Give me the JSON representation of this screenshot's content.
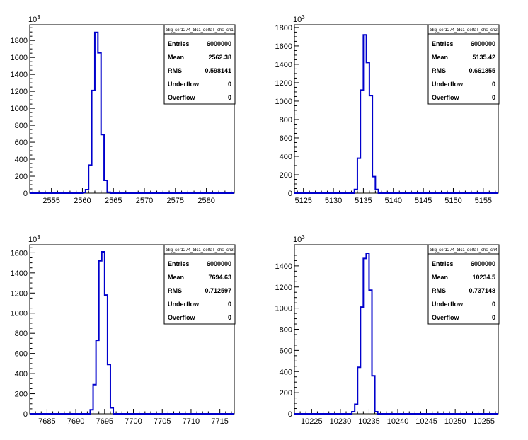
{
  "chart_data": [
    {
      "type": "histogram",
      "name": "tdig_ser1274_tdc1_deltaT_ch0_ch1",
      "x_ticks": [
        2555,
        2560,
        2565,
        2570,
        2575,
        2580
      ],
      "xlim": [
        2551.5,
        2584.5
      ],
      "y_ticks": [
        0,
        200,
        400,
        600,
        800,
        1000,
        1200,
        1400,
        1600,
        1800
      ],
      "ylim": [
        0,
        1985
      ],
      "y_exponent": "10",
      "y_exponent_power": "3",
      "bins": [
        {
          "x": 2558.5,
          "y": 0
        },
        {
          "x": 2559.5,
          "y": 0
        },
        {
          "x": 2560.0,
          "y": 8
        },
        {
          "x": 2560.5,
          "y": 42
        },
        {
          "x": 2561.0,
          "y": 330
        },
        {
          "x": 2561.5,
          "y": 1210
        },
        {
          "x": 2562.0,
          "y": 1895
        },
        {
          "x": 2562.5,
          "y": 1655
        },
        {
          "x": 2563.0,
          "y": 690
        },
        {
          "x": 2563.5,
          "y": 150
        },
        {
          "x": 2564.0,
          "y": 10
        },
        {
          "x": 2564.5,
          "y": 0
        }
      ],
      "bin_width": 0.5,
      "color": "#0000cc",
      "stats": {
        "title": "tdig_ser1274_tdc1_deltaT_ch0_ch1",
        "rows": [
          {
            "label": "Entries",
            "value": "6000000"
          },
          {
            "label": "Mean",
            "value": "2562.38"
          },
          {
            "label": "RMS",
            "value": "0.598141"
          },
          {
            "label": "Underflow",
            "value": "0"
          },
          {
            "label": "Overflow",
            "value": "0"
          }
        ]
      }
    },
    {
      "type": "histogram",
      "name": "tdig_ser1274_tdc1_deltaT_ch0_ch2",
      "x_ticks": [
        5125,
        5130,
        5135,
        5140,
        5145,
        5150,
        5155
      ],
      "xlim": [
        5123.5,
        5157.5
      ],
      "y_ticks": [
        0,
        200,
        400,
        600,
        800,
        1000,
        1200,
        1400,
        1600,
        1800
      ],
      "ylim": [
        0,
        1830
      ],
      "y_exponent": "10",
      "y_exponent_power": "3",
      "bins": [
        {
          "x": 5132.0,
          "y": 0
        },
        {
          "x": 5133.0,
          "y": 0
        },
        {
          "x": 5133.5,
          "y": 40
        },
        {
          "x": 5134.0,
          "y": 380
        },
        {
          "x": 5134.5,
          "y": 1120
        },
        {
          "x": 5135.0,
          "y": 1720
        },
        {
          "x": 5135.5,
          "y": 1420
        },
        {
          "x": 5136.0,
          "y": 1060
        },
        {
          "x": 5136.5,
          "y": 180
        },
        {
          "x": 5137.0,
          "y": 40
        },
        {
          "x": 5137.5,
          "y": 0
        }
      ],
      "bin_width": 0.5,
      "color": "#0000cc",
      "stats": {
        "title": "tdig_ser1274_tdc1_deltaT_ch0_ch2",
        "rows": [
          {
            "label": "Entries",
            "value": "6000000"
          },
          {
            "label": "Mean",
            "value": "5135.42"
          },
          {
            "label": "RMS",
            "value": "0.661855"
          },
          {
            "label": "Underflow",
            "value": "0"
          },
          {
            "label": "Overflow",
            "value": "0"
          }
        ]
      }
    },
    {
      "type": "histogram",
      "name": "tdig_ser1274_tdc1_deltaT_ch0_ch3",
      "x_ticks": [
        7685,
        7690,
        7695,
        7700,
        7705,
        7710,
        7715
      ],
      "xlim": [
        7682.0,
        7717.5
      ],
      "y_ticks": [
        0,
        200,
        400,
        600,
        800,
        1000,
        1200,
        1400,
        1600
      ],
      "ylim": [
        0,
        1680
      ],
      "y_exponent": "10",
      "y_exponent_power": "3",
      "bins": [
        {
          "x": 7692.0,
          "y": 0
        },
        {
          "x": 7692.5,
          "y": 40
        },
        {
          "x": 7693.0,
          "y": 290
        },
        {
          "x": 7693.5,
          "y": 730
        },
        {
          "x": 7694.0,
          "y": 1520
        },
        {
          "x": 7694.5,
          "y": 1610
        },
        {
          "x": 7695.0,
          "y": 1180
        },
        {
          "x": 7695.5,
          "y": 490
        },
        {
          "x": 7696.0,
          "y": 60
        },
        {
          "x": 7696.5,
          "y": 0
        }
      ],
      "bin_width": 0.5,
      "color": "#0000cc",
      "stats": {
        "title": "tdig_ser1274_tdc1_deltaT_ch0_ch3",
        "rows": [
          {
            "label": "Entries",
            "value": "6000000"
          },
          {
            "label": "Mean",
            "value": "7694.63"
          },
          {
            "label": "RMS",
            "value": "0.712597"
          },
          {
            "label": "Underflow",
            "value": "0"
          },
          {
            "label": "Overflow",
            "value": "0"
          }
        ]
      }
    },
    {
      "type": "histogram",
      "name": "tdig_ser1274_tdc1_deltaT_ch0_ch4",
      "x_ticks": [
        10225,
        10230,
        10235,
        10240,
        10245,
        10250,
        10255
      ],
      "xlim": [
        10222.0,
        10257.5
      ],
      "y_ticks": [
        0,
        200,
        400,
        600,
        800,
        1000,
        1200,
        1400
      ],
      "ylim": [
        0,
        1600
      ],
      "y_exponent": "10",
      "y_exponent_power": "3",
      "bins": [
        {
          "x": 10231.5,
          "y": 0
        },
        {
          "x": 10232.0,
          "y": 20
        },
        {
          "x": 10232.5,
          "y": 90
        },
        {
          "x": 10233.0,
          "y": 440
        },
        {
          "x": 10233.5,
          "y": 1010
        },
        {
          "x": 10234.0,
          "y": 1470
        },
        {
          "x": 10234.5,
          "y": 1520
        },
        {
          "x": 10235.0,
          "y": 1170
        },
        {
          "x": 10235.5,
          "y": 360
        },
        {
          "x": 10236.0,
          "y": 20
        },
        {
          "x": 10236.5,
          "y": 0
        }
      ],
      "bin_width": 0.5,
      "color": "#0000cc",
      "stats": {
        "title": "tdig_ser1274_tdc1_deltaT_ch0_ch4",
        "rows": [
          {
            "label": "Entries",
            "value": "6000000"
          },
          {
            "label": "Mean",
            "value": "10234.5"
          },
          {
            "label": "RMS",
            "value": "0.737148"
          },
          {
            "label": "Underflow",
            "value": "0"
          },
          {
            "label": "Overflow",
            "value": "0"
          }
        ]
      }
    }
  ]
}
